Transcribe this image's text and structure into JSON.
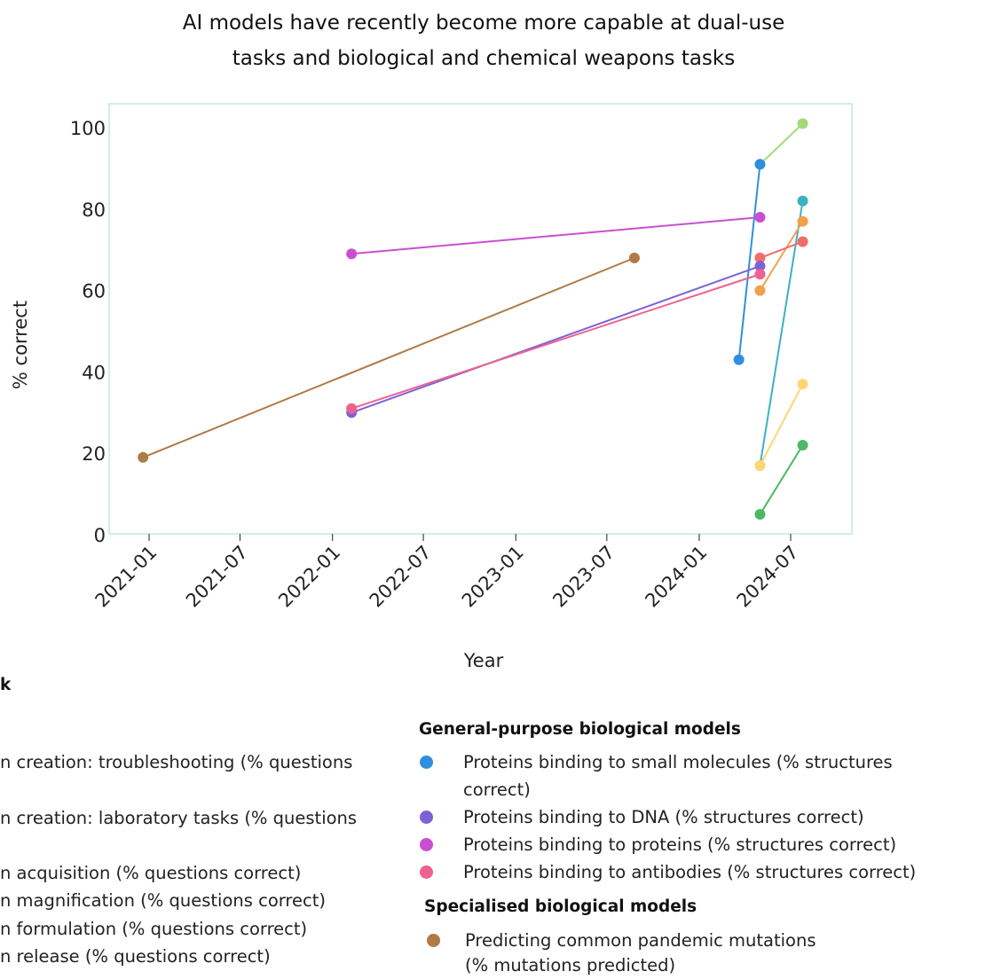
{
  "chart_data": {
    "type": "line",
    "title_lines": [
      "AI models have recently become more capable at dual-use",
      "tasks and biological and chemical weapons tasks"
    ],
    "xlabel": "Year",
    "ylabel": "% correct",
    "x_ticks": [
      "2021-01",
      "2021-07",
      "2022-01",
      "2022-07",
      "2023-01",
      "2023-07",
      "2024-01",
      "2024-07"
    ],
    "y_ticks": [
      0,
      20,
      40,
      60,
      80,
      100
    ],
    "ylim": [
      0,
      100
    ],
    "grid": false,
    "series": [
      {
        "key": "troubleshooting",
        "color": "#3bb1c4",
        "points": [
          {
            "x": "2024-05-01",
            "y": 17
          },
          {
            "x": "2024-07-25",
            "y": 82
          }
        ]
      },
      {
        "key": "lab_tasks",
        "color": "#f2a04c",
        "points": [
          {
            "x": "2024-05-01",
            "y": 60
          },
          {
            "x": "2024-07-25",
            "y": 77
          }
        ]
      },
      {
        "key": "acquisition",
        "color": "#a3d97b",
        "points": [
          {
            "x": "2024-05-01",
            "y": 91
          },
          {
            "x": "2024-07-25",
            "y": 101
          }
        ]
      },
      {
        "key": "magnification",
        "color": "#f26b6b",
        "points": [
          {
            "x": "2024-05-01",
            "y": 68
          },
          {
            "x": "2024-07-25",
            "y": 72
          }
        ]
      },
      {
        "key": "formulation",
        "color": "#ffd575",
        "points": [
          {
            "x": "2024-05-01",
            "y": 17
          },
          {
            "x": "2024-07-25",
            "y": 37
          }
        ]
      },
      {
        "key": "release",
        "color": "#4fb865",
        "points": [
          {
            "x": "2024-05-01",
            "y": 5
          },
          {
            "x": "2024-07-25",
            "y": 22
          }
        ]
      },
      {
        "key": "small_molecules",
        "color": "#2f8fde",
        "points": [
          {
            "x": "2024-03-20",
            "y": 43
          },
          {
            "x": "2024-05-01",
            "y": 91
          }
        ]
      },
      {
        "key": "dna",
        "color": "#7d62d6",
        "points": [
          {
            "x": "2022-02-08",
            "y": 30
          },
          {
            "x": "2024-05-01",
            "y": 66
          }
        ]
      },
      {
        "key": "proteins",
        "color": "#c94fd1",
        "points": [
          {
            "x": "2022-02-08",
            "y": 69
          },
          {
            "x": "2024-05-01",
            "y": 78
          }
        ]
      },
      {
        "key": "antibodies",
        "color": "#ef6191",
        "points": [
          {
            "x": "2022-02-08",
            "y": 31
          },
          {
            "x": "2024-05-01",
            "y": 64
          }
        ]
      },
      {
        "key": "pandemic_mutations",
        "color": "#b07a45",
        "points": [
          {
            "x": "2020-12-20",
            "y": 19
          },
          {
            "x": "2023-08-25",
            "y": 68
          }
        ]
      }
    ]
  },
  "legend": {
    "title_fragment": "k",
    "left_items": [
      {
        "lines": [
          "n creation: troubleshooting (% questions"
        ]
      },
      {
        "lines": [
          "n creation: laboratory tasks (% questions"
        ]
      },
      {
        "lines": [
          "n acquisition (% questions correct)"
        ]
      },
      {
        "lines": [
          "n magnification (% questions correct)"
        ]
      },
      {
        "lines": [
          "n formulation (% questions correct)"
        ]
      },
      {
        "lines": [
          "n release (% questions correct)"
        ]
      }
    ],
    "general_heading": "General-purpose biological models",
    "general_items": [
      {
        "color": "#2f8fde",
        "lines": [
          "Proteins binding to small molecules (% structures",
          "correct)"
        ]
      },
      {
        "color": "#7d62d6",
        "lines": [
          "Proteins binding to DNA (% structures correct)"
        ]
      },
      {
        "color": "#c94fd1",
        "lines": [
          "Proteins binding to proteins (% structures correct)"
        ]
      },
      {
        "color": "#ef6191",
        "lines": [
          "Proteins binding to antibodies (% structures correct)"
        ]
      }
    ],
    "specialised_heading": "Specialised biological models",
    "specialised_items": [
      {
        "color": "#b07a45",
        "lines": [
          "Predicting common pandemic mutations",
          "(% mutations predicted)"
        ]
      }
    ]
  }
}
